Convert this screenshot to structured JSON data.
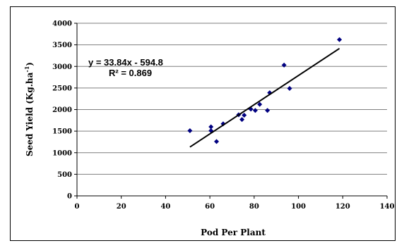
{
  "chart_data": {
    "type": "scatter",
    "title": "",
    "xlabel": "Pod Per Plant",
    "ylabel_parts": {
      "main": "Seed Yield (Kg.ha",
      "sup": "-1",
      "tail": ")"
    },
    "xlim": [
      0,
      140
    ],
    "ylim": [
      0,
      4000
    ],
    "x_ticks": [
      0,
      20,
      40,
      60,
      80,
      100,
      120,
      140
    ],
    "y_ticks": [
      0,
      500,
      1000,
      1500,
      2000,
      2500,
      3000,
      3500,
      4000
    ],
    "grid": "horizontal",
    "legend": "none",
    "marker_color": "#000080",
    "series": [
      {
        "x": [
          51,
          60.5,
          60.5,
          63,
          66,
          73,
          74.5,
          75.5,
          78.5,
          80.5,
          82.5,
          86,
          87,
          93.5,
          96,
          118.5
        ],
        "y": [
          1510,
          1600,
          1510,
          1260,
          1670,
          1880,
          1770,
          1870,
          2010,
          1980,
          2120,
          1980,
          2390,
          3030,
          2490,
          3620
        ]
      }
    ],
    "trendline": {
      "slope": 33.84,
      "intercept": -594.8,
      "x_range": [
        51,
        118.5
      ],
      "color": "#000000"
    },
    "annotations": {
      "equation": "y = 33.84x - 594.8",
      "r_squared": "R² = 0.869"
    }
  }
}
